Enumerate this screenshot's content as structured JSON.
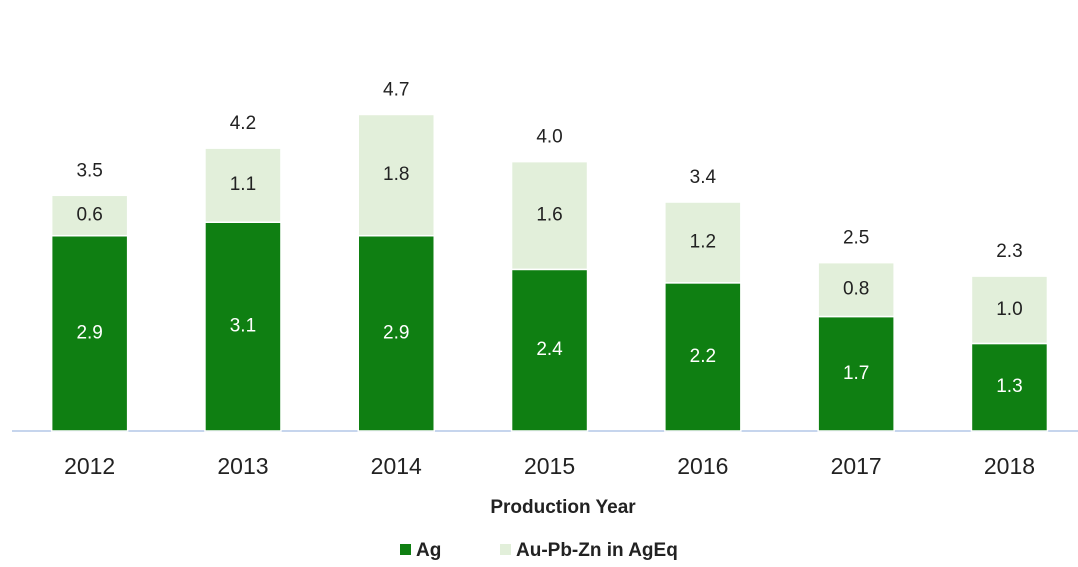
{
  "chart_data": {
    "type": "stacked_bar",
    "x_label": "Production Year",
    "categories": [
      "2012",
      "2013",
      "2014",
      "2015",
      "2016",
      "2017",
      "2018"
    ],
    "series": [
      {
        "name": "Ag",
        "color": "#0f7f12",
        "values": [
          2.9,
          3.1,
          2.9,
          2.4,
          2.2,
          1.7,
          1.3
        ]
      },
      {
        "name": "Au-Pb-Zn in AgEq",
        "color": "#e2efda",
        "values": [
          0.6,
          1.1,
          1.8,
          1.6,
          1.2,
          0.8,
          1.0
        ],
        "value_labels": [
          "0.6",
          "1.1",
          "1.8",
          "1.6",
          "1.2",
          "0.8",
          "1.0"
        ]
      }
    ],
    "totals": [
      3.5,
      4.2,
      4.7,
      4.0,
      3.4,
      2.5,
      2.3
    ],
    "total_labels": [
      "3.5",
      "4.2",
      "4.7",
      "4.0",
      "3.4",
      "2.5",
      "2.3"
    ],
    "ylim": [
      0,
      6.4
    ],
    "legend": "bottom"
  }
}
